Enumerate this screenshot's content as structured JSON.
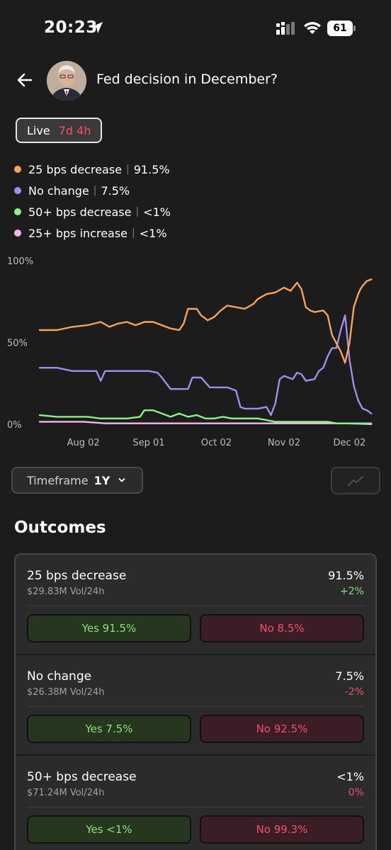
{
  "status_bar": {
    "time": "20:23",
    "battery": "61"
  },
  "header": {
    "title": "Fed decision in December?"
  },
  "live": {
    "label": "Live",
    "time_left": "7d 4h"
  },
  "legend": [
    {
      "label": "25 bps decrease",
      "value": "91.5%",
      "color": "#f7a35c"
    },
    {
      "label": "No change",
      "value": "7.5%",
      "color": "#a58bf0"
    },
    {
      "label": "50+ bps decrease",
      "value": "<1%",
      "color": "#8ef08a"
    },
    {
      "label": "25+ bps increase",
      "value": "<1%",
      "color": "#f3b6e6"
    }
  ],
  "chart_data": {
    "type": "line",
    "x_ticks": [
      "Aug 02",
      "Sep 01",
      "Oct 02",
      "Nov 02",
      "Dec 02"
    ],
    "y_ticks": [
      "100%",
      "50%",
      "0%"
    ],
    "ylim": [
      0,
      100
    ],
    "x_range_days": [
      -20,
      130
    ],
    "series": [
      {
        "name": "25 bps decrease",
        "color": "#f7a35c",
        "points": [
          [
            -20,
            58
          ],
          [
            -12,
            58
          ],
          [
            -5,
            60
          ],
          [
            2,
            61
          ],
          [
            8,
            63
          ],
          [
            12,
            60
          ],
          [
            16,
            62
          ],
          [
            20,
            63
          ],
          [
            24,
            61
          ],
          [
            28,
            63
          ],
          [
            32,
            63
          ],
          [
            36,
            61
          ],
          [
            40,
            59
          ],
          [
            44,
            58
          ],
          [
            46,
            62
          ],
          [
            48,
            71
          ],
          [
            52,
            71
          ],
          [
            54,
            67
          ],
          [
            57,
            64
          ],
          [
            60,
            66
          ],
          [
            63,
            70
          ],
          [
            66,
            73
          ],
          [
            70,
            72
          ],
          [
            74,
            71
          ],
          [
            78,
            74
          ],
          [
            80,
            77
          ],
          [
            84,
            80
          ],
          [
            88,
            81
          ],
          [
            92,
            84
          ],
          [
            95,
            82
          ],
          [
            98,
            87
          ],
          [
            100,
            83
          ],
          [
            102,
            72
          ],
          [
            104,
            70
          ],
          [
            106,
            69
          ],
          [
            110,
            70
          ],
          [
            112,
            67
          ],
          [
            114,
            55
          ],
          [
            116,
            50
          ],
          [
            118,
            45
          ],
          [
            120,
            38
          ],
          [
            122,
            50
          ],
          [
            124,
            72
          ],
          [
            126,
            80
          ],
          [
            127,
            83
          ],
          [
            128,
            85
          ],
          [
            130,
            88
          ],
          [
            132,
            89
          ]
        ]
      },
      {
        "name": "No change",
        "color": "#a58bf0",
        "points": [
          [
            -20,
            35
          ],
          [
            -12,
            35
          ],
          [
            -5,
            33
          ],
          [
            2,
            33
          ],
          [
            6,
            33
          ],
          [
            8,
            27
          ],
          [
            10,
            33
          ],
          [
            14,
            33
          ],
          [
            18,
            33
          ],
          [
            24,
            33
          ],
          [
            30,
            33
          ],
          [
            34,
            32
          ],
          [
            36,
            29
          ],
          [
            40,
            22
          ],
          [
            44,
            22
          ],
          [
            48,
            22
          ],
          [
            50,
            29
          ],
          [
            54,
            29
          ],
          [
            58,
            23
          ],
          [
            62,
            23
          ],
          [
            66,
            23
          ],
          [
            70,
            21
          ],
          [
            72,
            11
          ],
          [
            74,
            10
          ],
          [
            78,
            10
          ],
          [
            80,
            10
          ],
          [
            84,
            11
          ],
          [
            86,
            6
          ],
          [
            88,
            13
          ],
          [
            90,
            28
          ],
          [
            92,
            30
          ],
          [
            96,
            28
          ],
          [
            98,
            32
          ],
          [
            100,
            31
          ],
          [
            102,
            27
          ],
          [
            106,
            28
          ],
          [
            108,
            33
          ],
          [
            110,
            35
          ],
          [
            112,
            42
          ],
          [
            114,
            47
          ],
          [
            116,
            47
          ],
          [
            118,
            58
          ],
          [
            120,
            67
          ],
          [
            122,
            40
          ],
          [
            124,
            24
          ],
          [
            126,
            15
          ],
          [
            128,
            10
          ],
          [
            130,
            9
          ],
          [
            132,
            7
          ]
        ]
      },
      {
        "name": "50+ bps decrease",
        "color": "#8ef08a",
        "points": [
          [
            -20,
            6
          ],
          [
            -12,
            5
          ],
          [
            -5,
            5
          ],
          [
            2,
            5
          ],
          [
            8,
            4
          ],
          [
            14,
            4
          ],
          [
            20,
            4
          ],
          [
            26,
            5
          ],
          [
            28,
            9
          ],
          [
            32,
            9
          ],
          [
            36,
            7
          ],
          [
            40,
            5
          ],
          [
            44,
            7
          ],
          [
            48,
            5
          ],
          [
            52,
            6
          ],
          [
            56,
            4
          ],
          [
            60,
            4
          ],
          [
            64,
            5
          ],
          [
            68,
            4
          ],
          [
            72,
            4
          ],
          [
            76,
            4
          ],
          [
            80,
            4
          ],
          [
            84,
            3
          ],
          [
            88,
            2
          ],
          [
            92,
            2
          ],
          [
            96,
            2
          ],
          [
            100,
            2
          ],
          [
            104,
            2
          ],
          [
            108,
            2
          ],
          [
            112,
            2
          ],
          [
            116,
            1
          ],
          [
            120,
            1
          ],
          [
            124,
            1
          ],
          [
            128,
            1
          ],
          [
            132,
            1
          ]
        ]
      },
      {
        "name": "25+ bps increase",
        "color": "#f3b6e6",
        "points": [
          [
            -20,
            2
          ],
          [
            -10,
            2
          ],
          [
            0,
            2
          ],
          [
            10,
            1
          ],
          [
            20,
            1
          ],
          [
            30,
            1
          ],
          [
            40,
            1
          ],
          [
            50,
            1
          ],
          [
            60,
            1
          ],
          [
            70,
            1
          ],
          [
            80,
            1
          ],
          [
            90,
            1
          ],
          [
            100,
            1
          ],
          [
            110,
            1
          ],
          [
            120,
            1
          ],
          [
            132,
            0.5
          ]
        ]
      }
    ]
  },
  "timeframe": {
    "label": "Timeframe",
    "value": "1Y"
  },
  "outcomes": {
    "title": "Outcomes",
    "items": [
      {
        "name": "25 bps decrease",
        "volume": "$29.83M Vol/24h",
        "prob": "91.5%",
        "change": "+2%",
        "change_dir": "up",
        "yes": "Yes 91.5%",
        "no": "No 8.5%"
      },
      {
        "name": "No change",
        "volume": "$26.38M Vol/24h",
        "prob": "7.5%",
        "change": "-2%",
        "change_dir": "down",
        "yes": "Yes 7.5%",
        "no": "No 92.5%"
      },
      {
        "name": "50+ bps decrease",
        "volume": "$71.24M Vol/24h",
        "prob": "<1%",
        "change": "0%",
        "change_dir": "down",
        "yes": "Yes <1%",
        "no": "No 99.3%"
      }
    ]
  }
}
